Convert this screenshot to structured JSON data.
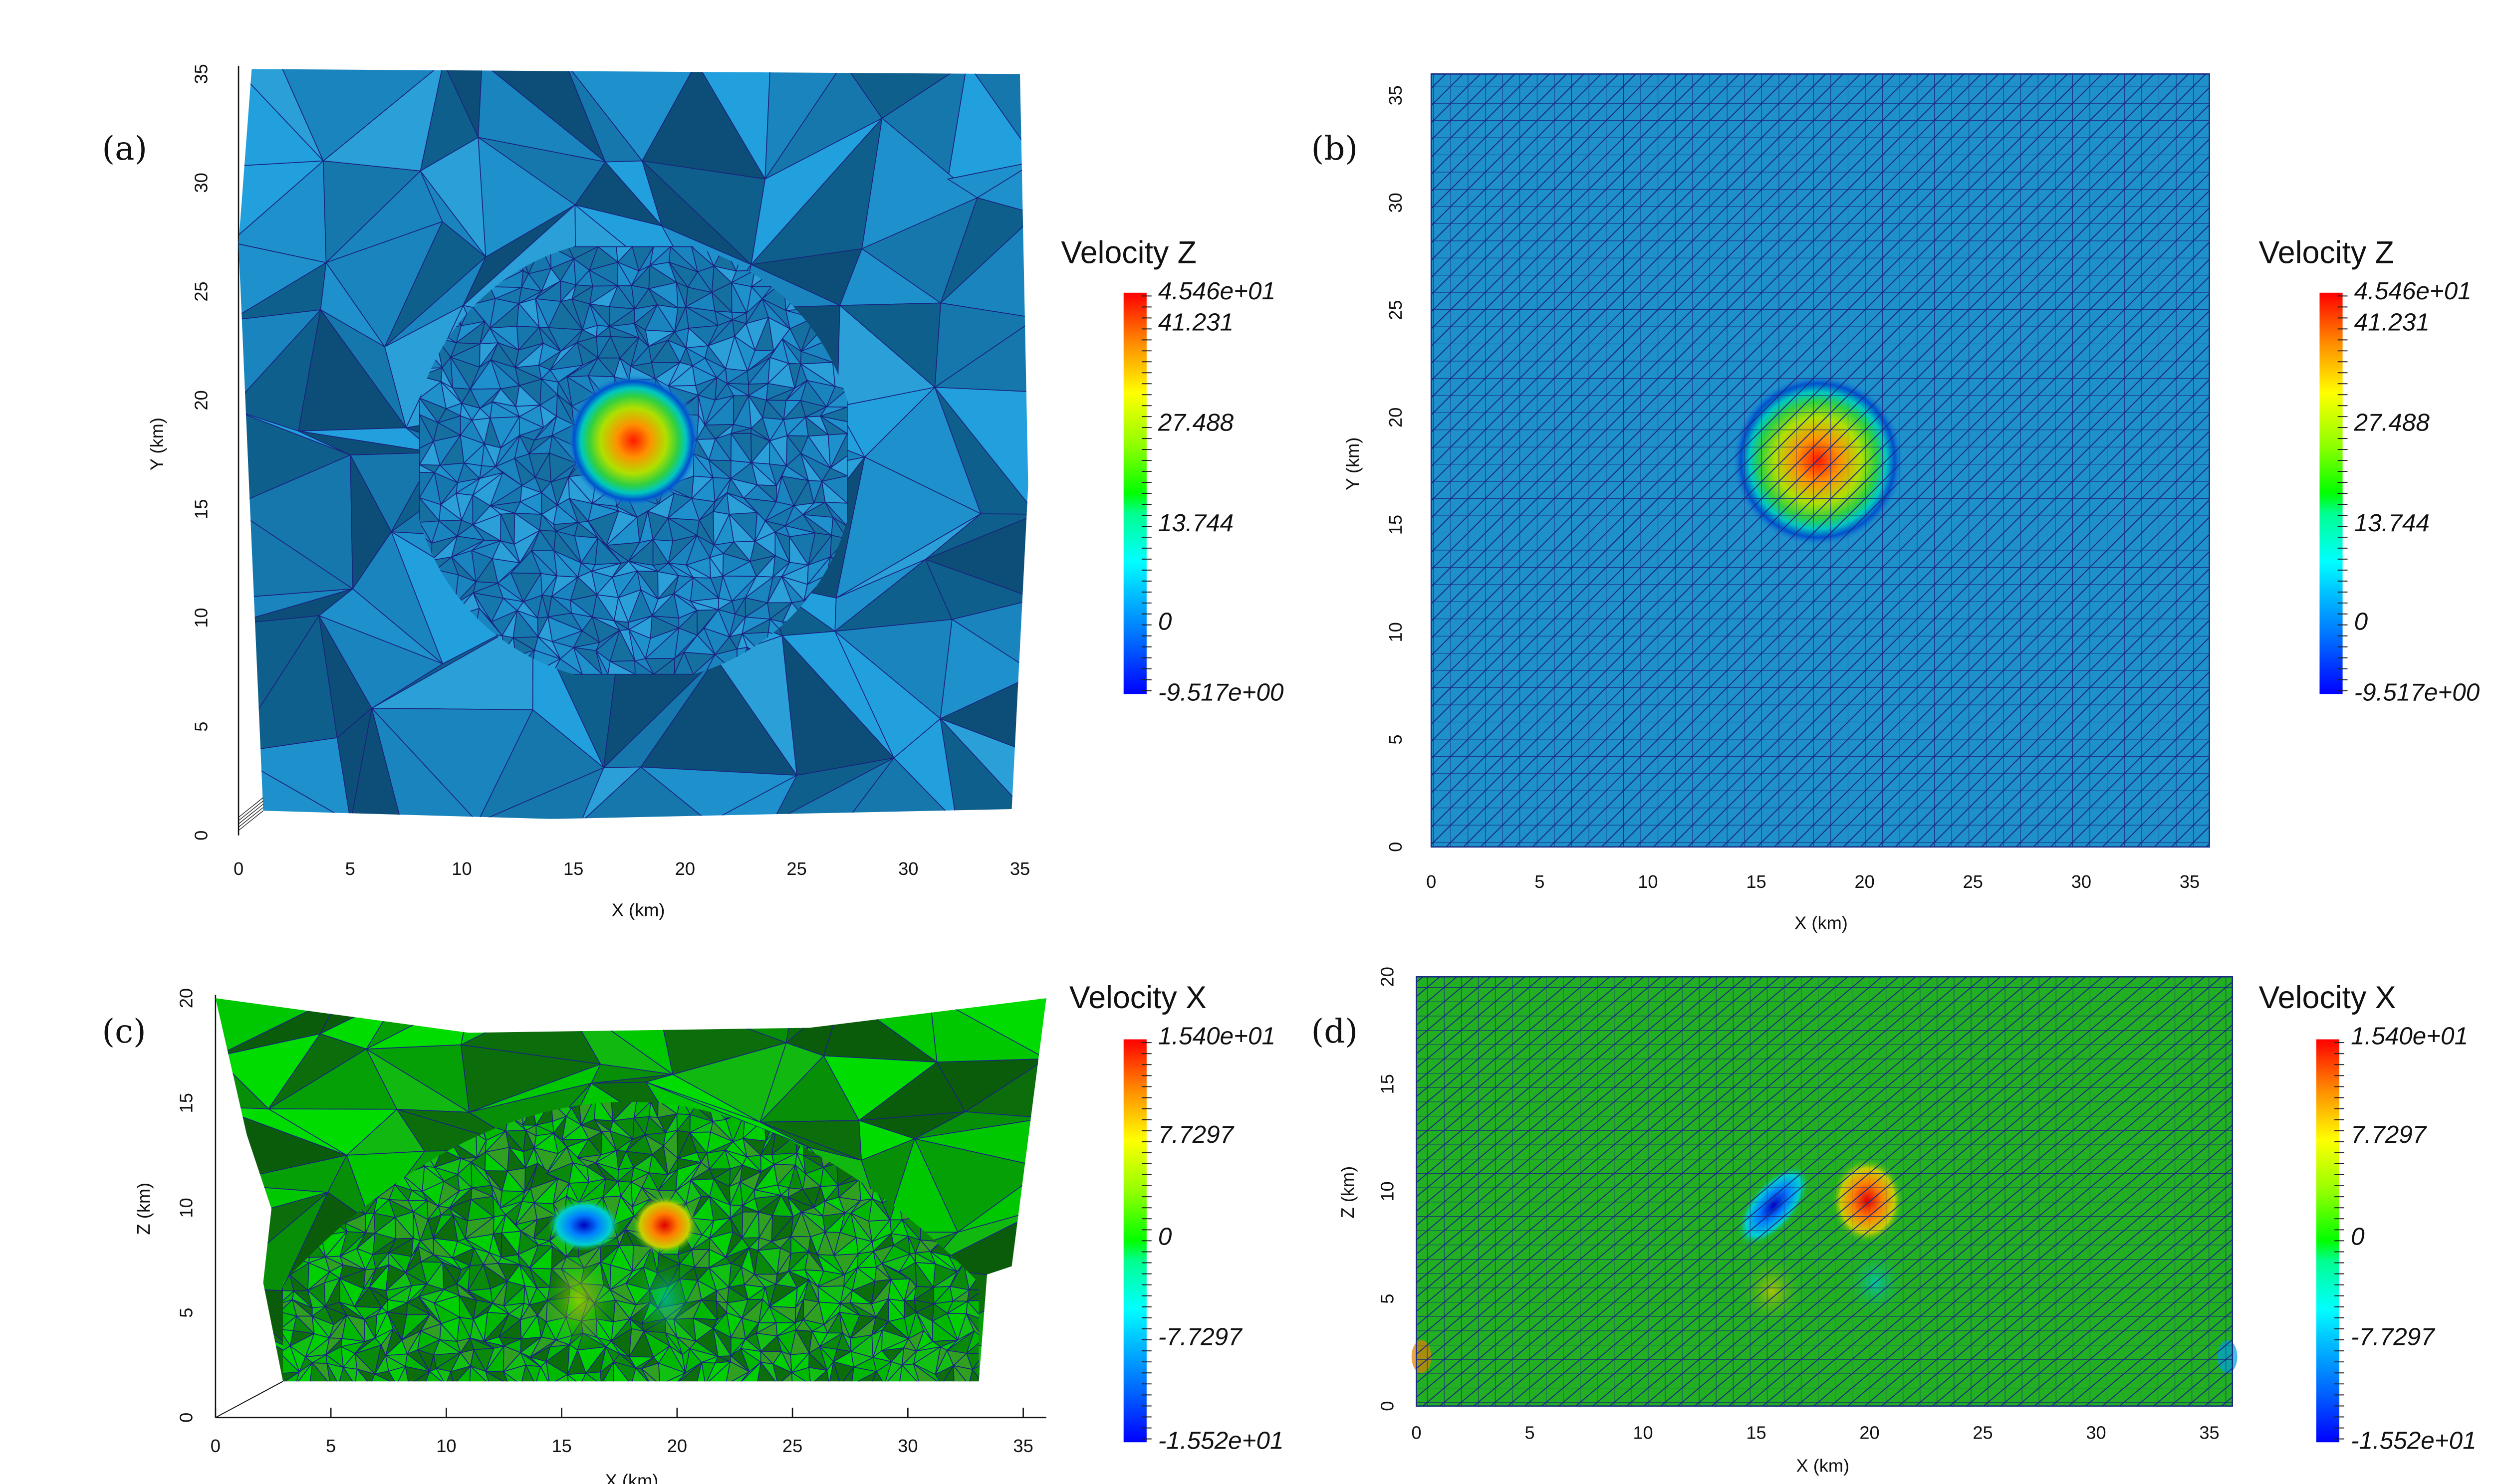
{
  "chart_data": [
    {
      "panel_label": "(a)",
      "type": "heatmap",
      "mesh": "unstructured triangular (adaptive, refined around source)",
      "title": "Velocity Z",
      "xlabel": "X (km)",
      "ylabel": "Y (km)",
      "x_ticks": [
        "0",
        "5",
        "10",
        "15",
        "20",
        "25",
        "30",
        "35"
      ],
      "y_ticks": [
        "0",
        "5",
        "10",
        "15",
        "20",
        "25",
        "30",
        "35"
      ],
      "xlim": [
        0,
        35
      ],
      "ylim": [
        0,
        35
      ],
      "colorbar": {
        "min": -9.517,
        "max": 45.46,
        "labels": [
          "4.546e+01",
          "41.231",
          "27.488",
          "13.744",
          "0",
          "-9.517e+00"
        ],
        "colormap": "rainbow"
      },
      "extrema": [
        {
          "kind": "max",
          "x": 18,
          "y": 18,
          "value": 45.46
        }
      ],
      "background_color": "#1e90cc"
    },
    {
      "panel_label": "(b)",
      "type": "heatmap",
      "mesh": "structured triangular grid",
      "title": "Velocity Z",
      "xlabel": "X (km)",
      "ylabel": "Y (km)",
      "x_ticks": [
        "0",
        "5",
        "10",
        "15",
        "20",
        "25",
        "30",
        "35"
      ],
      "y_ticks": [
        "0",
        "5",
        "10",
        "15",
        "20",
        "25",
        "30",
        "35"
      ],
      "xlim": [
        0,
        36
      ],
      "ylim": [
        0,
        36
      ],
      "colorbar": {
        "min": -9.517,
        "max": 45.46,
        "labels": [
          "4.546e+01",
          "41.231",
          "27.488",
          "13.744",
          "0",
          "-9.517e+00"
        ],
        "colormap": "rainbow"
      },
      "extrema": [
        {
          "kind": "max",
          "x": 18,
          "y": 18,
          "value": 45.46
        }
      ],
      "background_color": "#1e90cc"
    },
    {
      "panel_label": "(c)",
      "type": "heatmap",
      "mesh": "unstructured triangular (adaptive), 3D perspective",
      "title": "Velocity X",
      "xlabel": "X (km)",
      "ylabel": "Z (km)",
      "x_ticks": [
        "0",
        "5",
        "10",
        "15",
        "20",
        "25",
        "30",
        "35"
      ],
      "y_ticks": [
        "0",
        "5",
        "10",
        "15",
        "20"
      ],
      "xlim": [
        0,
        35
      ],
      "ylim": [
        0,
        20
      ],
      "colorbar": {
        "min": -15.52,
        "max": 15.4,
        "labels": [
          "1.540e+01",
          "7.7297",
          "0",
          "-7.7297",
          "-1.552e+01"
        ],
        "colormap": "rainbow"
      },
      "extrema": [
        {
          "kind": "min",
          "x": 16,
          "z": 10,
          "value": -15.52
        },
        {
          "kind": "max",
          "x": 19.5,
          "z": 9.5,
          "value": 15.4
        }
      ],
      "background_color": "#00c000"
    },
    {
      "panel_label": "(d)",
      "type": "heatmap",
      "mesh": "structured triangular grid",
      "title": "Velocity X",
      "xlabel": "X (km)",
      "ylabel": "Z (km)",
      "x_ticks": [
        "0",
        "5",
        "10",
        "15",
        "20",
        "25",
        "30",
        "35"
      ],
      "y_ticks": [
        "0",
        "5",
        "10",
        "15",
        "20"
      ],
      "xlim": [
        0,
        36
      ],
      "ylim": [
        0,
        20
      ],
      "colorbar": {
        "min": -15.52,
        "max": 15.4,
        "labels": [
          "1.540e+01",
          "7.7297",
          "0",
          "-7.7297",
          "-1.552e+01"
        ],
        "colormap": "rainbow"
      },
      "extrema": [
        {
          "kind": "min",
          "x": 15.5,
          "z": 9.5,
          "value": -15.52
        },
        {
          "kind": "max",
          "x": 20,
          "z": 9.5,
          "value": 15.4
        },
        {
          "kind": "positive",
          "x": 15.5,
          "z": 5
        },
        {
          "kind": "negative",
          "x": 20.5,
          "z": 5
        }
      ],
      "background_color": "#22b022"
    }
  ]
}
